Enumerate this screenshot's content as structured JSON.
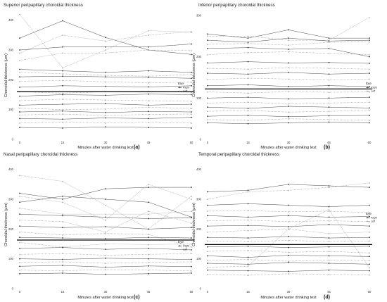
{
  "figure": {
    "legend": {
      "title": "Eye",
      "items": [
        "Right",
        "Left"
      ]
    },
    "colors": {
      "right": "#333333",
      "left": "#aaaaaa",
      "mean": "#000000"
    }
  },
  "chart_data": [
    {
      "type": "line",
      "panel_label": "(a)",
      "title": "Superior peripapillary choroidal thickness",
      "xlabel": "Minutes after water drinking test",
      "ylabel": "Choroidal thickness (μm)",
      "x": [
        0,
        15,
        30,
        45,
        60
      ],
      "xticks": [
        "0",
        "15",
        "30",
        "45",
        "60"
      ],
      "ylim": [
        0,
        430
      ],
      "yticks": [
        "0",
        "100",
        "200",
        "300",
        "400"
      ],
      "grid": false,
      "legend": "right",
      "mean_line": 160,
      "series": [
        {
          "eye": "Right",
          "values": [
            340,
            398,
            342,
            300,
            285
          ]
        },
        {
          "eye": "Left",
          "values": [
            420,
            240,
            300,
            365,
            360
          ]
        },
        {
          "eye": "Left",
          "values": [
            290,
            350,
            330,
            350,
            362
          ]
        },
        {
          "eye": "Right",
          "values": [
            300,
            310,
            310,
            310,
            320
          ]
        },
        {
          "eye": "Left",
          "values": [
            265,
            290,
            290,
            300,
            298
          ]
        },
        {
          "eye": "Right",
          "values": [
            235,
            230,
            225,
            230,
            225
          ]
        },
        {
          "eye": "Left",
          "values": [
            225,
            220,
            215,
            212,
            218
          ]
        },
        {
          "eye": "Right",
          "values": [
            210,
            212,
            210,
            208,
            205
          ]
        },
        {
          "eye": "Left",
          "values": [
            195,
            198,
            193,
            190,
            192
          ]
        },
        {
          "eye": "Right",
          "values": [
            175,
            180,
            178,
            176,
            180
          ]
        },
        {
          "eye": "Left",
          "values": [
            160,
            155,
            160,
            162,
            158
          ]
        },
        {
          "eye": "Right",
          "values": [
            145,
            150,
            148,
            152,
            150
          ]
        },
        {
          "eye": "Left",
          "values": [
            130,
            135,
            132,
            130,
            128
          ]
        },
        {
          "eye": "Right",
          "values": [
            115,
            118,
            120,
            115,
            118
          ]
        },
        {
          "eye": "Left",
          "values": [
            105,
            100,
            102,
            108,
            104
          ]
        },
        {
          "eye": "Right",
          "values": [
            92,
            95,
            90,
            94,
            92
          ]
        },
        {
          "eye": "Left",
          "values": [
            82,
            85,
            80,
            84,
            85
          ]
        },
        {
          "eye": "Right",
          "values": [
            70,
            68,
            72,
            70,
            74
          ]
        },
        {
          "eye": "Left",
          "values": [
            55,
            58,
            55,
            57,
            55
          ]
        },
        {
          "eye": "Right",
          "values": [
            40,
            38,
            42,
            40,
            38
          ]
        }
      ]
    },
    {
      "type": "line",
      "panel_label": "(b)",
      "title": "Inferior peripapillary choroidal thickness",
      "xlabel": "Minutes after water drinking test",
      "ylabel": "Choroidal thickness (μm)",
      "x": [
        0,
        15,
        30,
        45,
        60
      ],
      "xticks": [
        "0",
        "15",
        "30",
        "45",
        "60"
      ],
      "ylim": [
        0,
        310
      ],
      "yticks": [
        "0",
        "100",
        "200",
        "300"
      ],
      "grid": false,
      "legend": "right",
      "mean_line": 122,
      "series": [
        {
          "eye": "Right",
          "values": [
            255,
            245,
            265,
            245,
            245
          ]
        },
        {
          "eye": "Left",
          "values": [
            250,
            250,
            240,
            240,
            295
          ]
        },
        {
          "eye": "Right",
          "values": [
            240,
            235,
            245,
            238,
            240
          ]
        },
        {
          "eye": "Left",
          "values": [
            230,
            232,
            228,
            235,
            236
          ]
        },
        {
          "eye": "Right",
          "values": [
            220,
            222,
            218,
            220,
            200
          ]
        },
        {
          "eye": "Left",
          "values": [
            205,
            210,
            212,
            208,
            205
          ]
        },
        {
          "eye": "Right",
          "values": [
            185,
            188,
            185,
            186,
            184
          ]
        },
        {
          "eye": "Left",
          "values": [
            172,
            170,
            174,
            172,
            170
          ]
        },
        {
          "eye": "Right",
          "values": [
            160,
            158,
            162,
            158,
            160
          ]
        },
        {
          "eye": "Left",
          "values": [
            145,
            148,
            146,
            144,
            146
          ]
        },
        {
          "eye": "Right",
          "values": [
            130,
            132,
            128,
            130,
            128
          ]
        },
        {
          "eye": "Left",
          "values": [
            115,
            112,
            116,
            114,
            115
          ]
        },
        {
          "eye": "Right",
          "values": [
            100,
            102,
            98,
            100,
            102
          ]
        },
        {
          "eye": "Left",
          "values": [
            88,
            90,
            86,
            88,
            90
          ]
        },
        {
          "eye": "Right",
          "values": [
            78,
            75,
            80,
            78,
            76
          ]
        },
        {
          "eye": "Left",
          "values": [
            68,
            70,
            66,
            68,
            70
          ]
        },
        {
          "eye": "Right",
          "values": [
            56,
            58,
            55,
            57,
            58
          ]
        },
        {
          "eye": "Left",
          "values": [
            48,
            46,
            50,
            48,
            46
          ]
        },
        {
          "eye": "Right",
          "values": [
            40,
            38,
            40,
            42,
            40
          ]
        }
      ]
    },
    {
      "type": "line",
      "panel_label": "(c)",
      "title": "Nasal peripapillary choroidal thickness",
      "xlabel": "Minutes after water drinking test",
      "ylabel": "Choroidal thickness (μm)",
      "x": [
        0,
        15,
        30,
        45,
        60
      ],
      "xticks": [
        "0",
        "15",
        "30",
        "45",
        "60"
      ],
      "ylim": [
        0,
        430
      ],
      "yticks": [
        "0",
        "100",
        "200",
        "300",
        "400"
      ],
      "grid": false,
      "legend": "right",
      "mean_line": 163,
      "series": [
        {
          "eye": "Left",
          "values": [
            380,
            360,
            280,
            200,
            310
          ]
        },
        {
          "eye": "Right",
          "values": [
            320,
            300,
            335,
            340,
            340
          ]
        },
        {
          "eye": "Left",
          "values": [
            310,
            290,
            230,
            350,
            300
          ]
        },
        {
          "eye": "Right",
          "values": [
            290,
            310,
            300,
            290,
            240
          ]
        },
        {
          "eye": "Left",
          "values": [
            270,
            250,
            250,
            250,
            260
          ]
        },
        {
          "eye": "Right",
          "values": [
            250,
            245,
            240,
            235,
            238
          ]
        },
        {
          "eye": "Left",
          "values": [
            230,
            225,
            190,
            260,
            220
          ]
        },
        {
          "eye": "Right",
          "values": [
            210,
            205,
            208,
            200,
            205
          ]
        },
        {
          "eye": "Left",
          "values": [
            190,
            180,
            185,
            182,
            140
          ]
        },
        {
          "eye": "Right",
          "values": [
            172,
            170,
            168,
            172,
            170
          ]
        },
        {
          "eye": "Left",
          "values": [
            155,
            140,
            150,
            148,
            150
          ]
        },
        {
          "eye": "Right",
          "values": [
            135,
            138,
            132,
            135,
            130
          ]
        },
        {
          "eye": "Left",
          "values": [
            115,
            118,
            112,
            115,
            118
          ]
        },
        {
          "eye": "Right",
          "values": [
            100,
            98,
            102,
            100,
            98
          ]
        },
        {
          "eye": "Left",
          "values": [
            88,
            90,
            85,
            88,
            90
          ]
        },
        {
          "eye": "Right",
          "values": [
            75,
            78,
            72,
            76,
            74
          ]
        },
        {
          "eye": "Left",
          "values": [
            62,
            60,
            64,
            62,
            60
          ]
        },
        {
          "eye": "Right",
          "values": [
            50,
            52,
            48,
            50,
            52
          ]
        }
      ]
    },
    {
      "type": "line",
      "panel_label": "(d)",
      "title": "Temporal peripapillary choroidal thickness",
      "xlabel": "Minutes after water drinking test",
      "ylabel": "Choroidal thickness (μm)",
      "x": [
        0,
        15,
        30,
        45,
        60
      ],
      "xticks": [
        "0",
        "15",
        "30",
        "45",
        "60"
      ],
      "ylim": [
        0,
        430
      ],
      "yticks": [
        "0",
        "100",
        "200",
        "300",
        "400"
      ],
      "grid": false,
      "legend": "right",
      "mean_line": 148,
      "series": [
        {
          "eye": "Right",
          "values": [
            325,
            330,
            350,
            345,
            340
          ]
        },
        {
          "eye": "Left",
          "values": [
            300,
            325,
            330,
            340,
            355
          ]
        },
        {
          "eye": "Right",
          "values": [
            280,
            285,
            280,
            275,
            280
          ]
        },
        {
          "eye": "Left",
          "values": [
            260,
            262,
            258,
            260,
            255
          ]
        },
        {
          "eye": "Right",
          "values": [
            245,
            240,
            245,
            240,
            242
          ]
        },
        {
          "eye": "Left",
          "values": [
            228,
            230,
            225,
            228,
            225
          ]
        },
        {
          "eye": "Right",
          "values": [
            210,
            212,
            208,
            215,
            210
          ]
        },
        {
          "eye": "Left",
          "values": [
            190,
            195,
            200,
            185,
            190
          ]
        },
        {
          "eye": "Right",
          "values": [
            172,
            170,
            175,
            170,
            172
          ]
        },
        {
          "eye": "Left",
          "values": [
            160,
            158,
            162,
            158,
            160
          ]
        },
        {
          "eye": "Right",
          "values": [
            140,
            142,
            138,
            140,
            142
          ]
        },
        {
          "eye": "Left",
          "values": [
            125,
            128,
            122,
            125,
            120
          ]
        },
        {
          "eye": "Right",
          "values": [
            110,
            105,
            112,
            110,
            108
          ]
        },
        {
          "eye": "Left",
          "values": [
            95,
            98,
            92,
            96,
            94
          ]
        },
        {
          "eye": "Right",
          "values": [
            85,
            82,
            88,
            85,
            82
          ]
        },
        {
          "eye": "Left",
          "values": [
            72,
            75,
            200,
            265,
            70
          ]
        },
        {
          "eye": "Right",
          "values": [
            62,
            60,
            58,
            62,
            60
          ]
        },
        {
          "eye": "Left",
          "values": [
            48,
            45,
            50,
            48,
            46
          ]
        }
      ]
    }
  ]
}
